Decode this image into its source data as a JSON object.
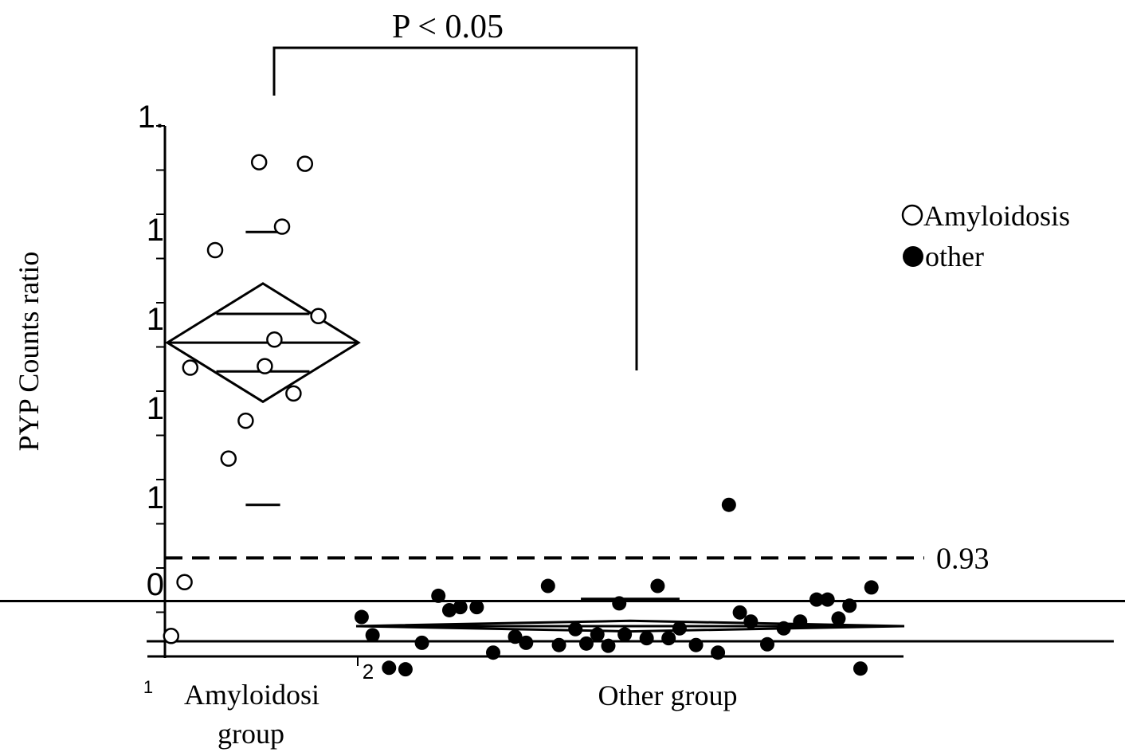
{
  "chart_data": {
    "type": "scatter",
    "ylabel": "PYP Counts ratio",
    "categories": [
      "Amyloidosi group",
      "Other group"
    ],
    "category_label_lines": [
      [
        "Amyloidosi",
        "group"
      ],
      [
        "Other group"
      ]
    ],
    "axis_marks": {
      "y_tick_labels": [
        "1.",
        "1",
        "1",
        "1",
        "1",
        "0"
      ],
      "x_tick_labels": [
        "1",
        "2"
      ]
    },
    "annotation": "P < 0.05",
    "threshold": {
      "value": 0.93,
      "label": "0.93"
    },
    "legend": {
      "placement": "right",
      "items": [
        {
          "label": "Amyloidosis",
          "marker": "open-circle"
        },
        {
          "label": "other",
          "marker": "filled-circle"
        }
      ]
    },
    "ylim": [
      0.8,
      1.5
    ],
    "grid": false,
    "series": [
      {
        "name": "Amyloidosis",
        "marker": "open",
        "group": 0,
        "points": [
          [
            0.48,
            1.452
          ],
          [
            0.72,
            1.45
          ],
          [
            0.6,
            1.367
          ],
          [
            0.25,
            1.336
          ],
          [
            0.79,
            1.249
          ],
          [
            0.56,
            1.218
          ],
          [
            0.12,
            1.181
          ],
          [
            0.51,
            1.183
          ],
          [
            0.66,
            1.147
          ],
          [
            0.41,
            1.111
          ],
          [
            0.32,
            1.061
          ],
          [
            0.09,
            0.898
          ],
          [
            0.02,
            0.827
          ]
        ],
        "mean": 1.214,
        "ci": [
          1.176,
          1.252
        ],
        "spread": [
          1.136,
          1.292
        ],
        "sd": [
          1.0,
          1.36
        ]
      },
      {
        "name": "other",
        "marker": "filled",
        "group": 1,
        "points": [
          [
            0.68,
            1.0
          ],
          [
            0.01,
            0.852
          ],
          [
            0.03,
            0.828
          ],
          [
            0.06,
            0.785
          ],
          [
            0.09,
            0.783
          ],
          [
            0.12,
            0.818
          ],
          [
            0.15,
            0.88
          ],
          [
            0.17,
            0.861
          ],
          [
            0.19,
            0.865
          ],
          [
            0.22,
            0.865
          ],
          [
            0.25,
            0.805
          ],
          [
            0.29,
            0.826
          ],
          [
            0.31,
            0.818
          ],
          [
            0.35,
            0.893
          ],
          [
            0.37,
            0.815
          ],
          [
            0.4,
            0.836
          ],
          [
            0.42,
            0.817
          ],
          [
            0.44,
            0.829
          ],
          [
            0.46,
            0.814
          ],
          [
            0.48,
            0.87
          ],
          [
            0.49,
            0.829
          ],
          [
            0.53,
            0.824
          ],
          [
            0.55,
            0.893
          ],
          [
            0.57,
            0.824
          ],
          [
            0.59,
            0.837
          ],
          [
            0.62,
            0.815
          ],
          [
            0.66,
            0.805
          ],
          [
            0.7,
            0.858
          ],
          [
            0.72,
            0.846
          ],
          [
            0.75,
            0.816
          ],
          [
            0.78,
            0.837
          ],
          [
            0.81,
            0.846
          ],
          [
            0.84,
            0.875
          ],
          [
            0.86,
            0.875
          ],
          [
            0.88,
            0.85
          ],
          [
            0.9,
            0.867
          ],
          [
            0.92,
            0.784
          ],
          [
            0.94,
            0.891
          ]
        ],
        "mean": 0.84,
        "ci": [
          0.82,
          0.873
        ],
        "spread": [
          0.833,
          0.847
        ],
        "sd": [
          0.8,
          0.876
        ]
      }
    ]
  }
}
